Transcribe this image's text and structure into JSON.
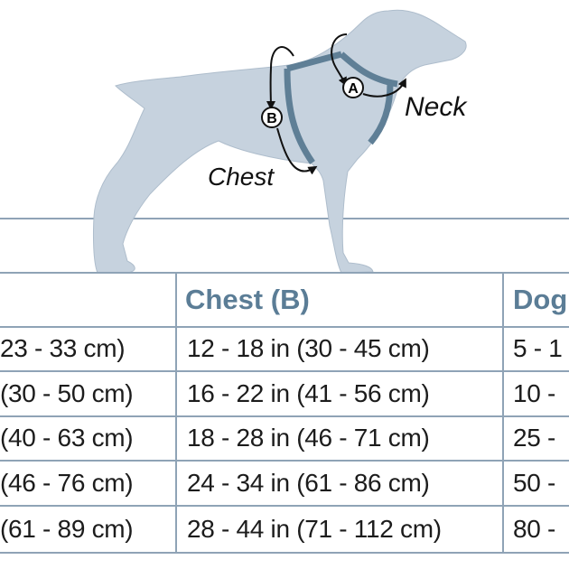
{
  "colors": {
    "text": "#1c1c1c",
    "header": "#5b7d96",
    "lines": "#8fa3b6",
    "dog": "#c6d2de",
    "harness": "#5f7f96"
  },
  "illustration": {
    "labels": {
      "neck": "Neck",
      "chest": "Chest",
      "marker_a": "A",
      "marker_b": "B"
    }
  },
  "table": {
    "headers": [
      "",
      "Chest (B)",
      "Dog"
    ],
    "rows": [
      [
        "23 - 33 cm)",
        "12 - 18 in  (30 - 45 cm)",
        "5 - 1"
      ],
      [
        "(30 - 50 cm)",
        "16 - 22 in  (41 - 56 cm)",
        "10 -"
      ],
      [
        "(40 - 63 cm)",
        "18 - 28 in  (46 - 71 cm)",
        "25 -"
      ],
      [
        "(46 - 76 cm)",
        "24 - 34 in  (61 - 86 cm)",
        "50 -"
      ],
      [
        "(61 - 89 cm)",
        "28 - 44 in  (71 - 112 cm)",
        "80 -"
      ]
    ]
  }
}
